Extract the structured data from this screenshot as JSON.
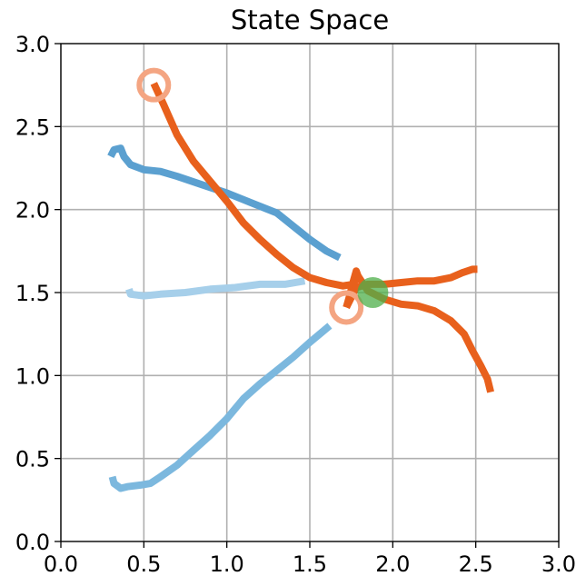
{
  "chart_data": {
    "type": "line",
    "title": "State Space",
    "xlabel": "",
    "ylabel": "",
    "xlim": [
      0.0,
      3.0
    ],
    "ylim": [
      0.0,
      3.0
    ],
    "grid": true,
    "xticks": [
      "0.0",
      "0.5",
      "1.0",
      "1.5",
      "2.0",
      "2.5",
      "3.0"
    ],
    "yticks": [
      "0.0",
      "0.5",
      "1.0",
      "1.5",
      "2.0",
      "2.5",
      "3.0"
    ],
    "series": [
      {
        "color": "#5ba0d0",
        "points": [
          [
            0.3,
            2.32
          ],
          [
            0.32,
            2.36
          ],
          [
            0.36,
            2.37
          ],
          [
            0.38,
            2.32
          ],
          [
            0.42,
            2.27
          ],
          [
            0.5,
            2.24
          ],
          [
            0.6,
            2.23
          ],
          [
            0.7,
            2.2
          ],
          [
            0.85,
            2.15
          ],
          [
            1.0,
            2.1
          ],
          [
            1.15,
            2.04
          ],
          [
            1.3,
            1.98
          ],
          [
            1.4,
            1.9
          ],
          [
            1.5,
            1.82
          ],
          [
            1.6,
            1.75
          ],
          [
            1.68,
            1.71
          ]
        ]
      },
      {
        "color": "#a6cfea",
        "points": [
          [
            0.41,
            1.52
          ],
          [
            0.42,
            1.49
          ],
          [
            0.5,
            1.48
          ],
          [
            0.6,
            1.49
          ],
          [
            0.75,
            1.5
          ],
          [
            0.9,
            1.52
          ],
          [
            1.05,
            1.53
          ],
          [
            1.2,
            1.55
          ],
          [
            1.35,
            1.55
          ],
          [
            1.47,
            1.57
          ]
        ]
      },
      {
        "color": "#7cb8de",
        "points": [
          [
            0.31,
            0.39
          ],
          [
            0.32,
            0.35
          ],
          [
            0.36,
            0.32
          ],
          [
            0.4,
            0.33
          ],
          [
            0.48,
            0.34
          ],
          [
            0.54,
            0.35
          ],
          [
            0.6,
            0.39
          ],
          [
            0.7,
            0.46
          ],
          [
            0.8,
            0.55
          ],
          [
            0.9,
            0.64
          ],
          [
            1.0,
            0.74
          ],
          [
            1.1,
            0.86
          ],
          [
            1.2,
            0.95
          ],
          [
            1.3,
            1.03
          ],
          [
            1.4,
            1.11
          ],
          [
            1.5,
            1.2
          ],
          [
            1.62,
            1.3
          ]
        ]
      },
      {
        "color": "#e8601c",
        "points": [
          [
            0.56,
            2.76
          ],
          [
            0.62,
            2.63
          ],
          [
            0.7,
            2.45
          ],
          [
            0.8,
            2.29
          ],
          [
            0.9,
            2.17
          ],
          [
            1.0,
            2.05
          ],
          [
            1.1,
            1.92
          ],
          [
            1.2,
            1.82
          ],
          [
            1.3,
            1.73
          ],
          [
            1.4,
            1.65
          ],
          [
            1.5,
            1.59
          ],
          [
            1.6,
            1.56
          ],
          [
            1.7,
            1.54
          ],
          [
            1.76,
            1.55
          ],
          [
            1.79,
            1.6
          ],
          [
            1.78,
            1.63
          ],
          [
            1.76,
            1.56
          ],
          [
            1.74,
            1.48
          ],
          [
            1.72,
            1.41
          ]
        ]
      },
      {
        "color": "#e8601c",
        "points": [
          [
            1.72,
            1.41
          ],
          [
            1.78,
            1.53
          ],
          [
            1.85,
            1.55
          ],
          [
            1.95,
            1.55
          ],
          [
            2.05,
            1.56
          ],
          [
            2.15,
            1.57
          ],
          [
            2.25,
            1.57
          ],
          [
            2.35,
            1.59
          ],
          [
            2.42,
            1.62
          ],
          [
            2.48,
            1.64
          ],
          [
            2.51,
            1.64
          ]
        ]
      },
      {
        "color": "#e8601c",
        "points": [
          [
            1.79,
            1.6
          ],
          [
            1.85,
            1.51
          ],
          [
            1.95,
            1.46
          ],
          [
            2.05,
            1.43
          ],
          [
            2.15,
            1.42
          ],
          [
            2.25,
            1.39
          ],
          [
            2.35,
            1.33
          ],
          [
            2.43,
            1.25
          ],
          [
            2.48,
            1.15
          ],
          [
            2.53,
            1.06
          ],
          [
            2.57,
            0.98
          ],
          [
            2.59,
            0.9
          ]
        ]
      }
    ],
    "markers": [
      {
        "kind": "start",
        "x": 0.56,
        "y": 2.75,
        "color": "#f4a582",
        "style": "ring"
      },
      {
        "kind": "start",
        "x": 1.72,
        "y": 1.41,
        "color": "#f4a582",
        "style": "ring"
      },
      {
        "kind": "goal",
        "x": 1.88,
        "y": 1.5,
        "color": "#4daf4a",
        "style": "filled"
      }
    ]
  }
}
